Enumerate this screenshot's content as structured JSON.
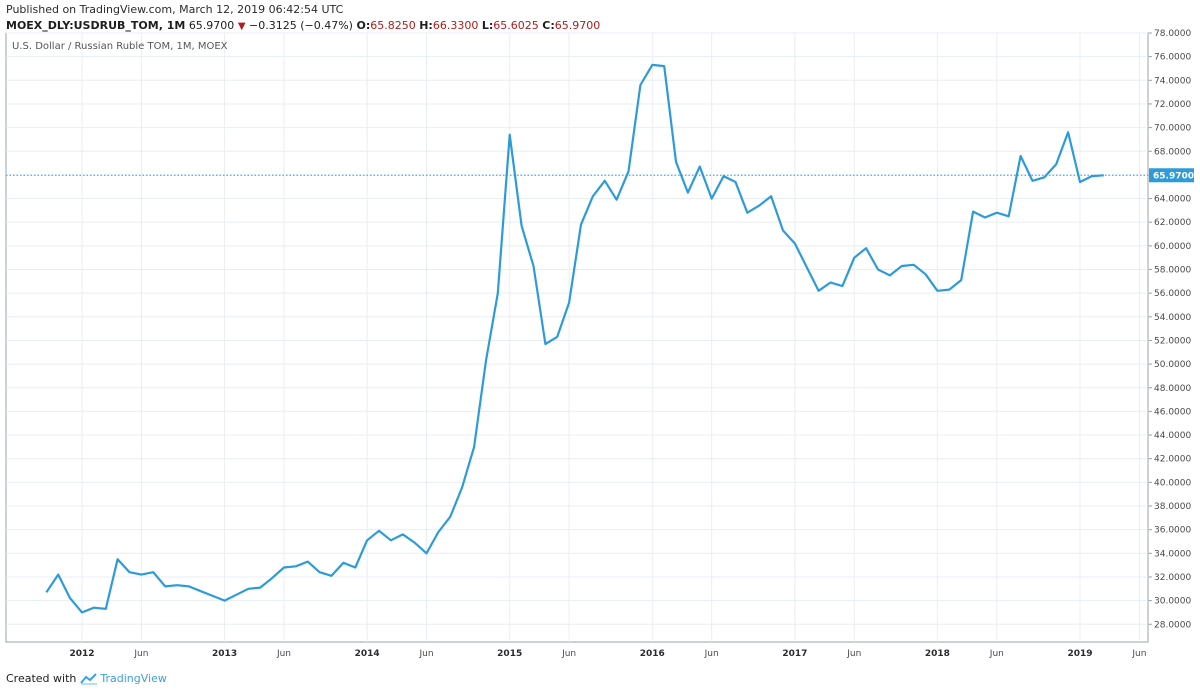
{
  "header": {
    "published": "Published on TradingView.com, March 12, 2019 06:42:54 UTC",
    "symbol": "MOEX_DLY:USDRUB_TOM, 1M",
    "last": "65.9700",
    "change": "−0.3125 (−0.47%)",
    "open_label": "O:",
    "open": "65.8250",
    "high_label": "H:",
    "high": "66.3300",
    "low_label": "L:",
    "low": "65.6025",
    "close_label": "C:",
    "close": "65.9700"
  },
  "footer": {
    "created_with": "Created with",
    "brand": "TradingView"
  },
  "colors": {
    "line": "#2e9bd9",
    "down": "#b01c1c",
    "grid": "#e8eef3",
    "price_label_bg": "#2e9bd9"
  },
  "chart_data": {
    "type": "line",
    "title": "U.S. Dollar / Russian Ruble TOM, 1M, MOEX",
    "ylim": [
      26.5,
      78
    ],
    "y_ticks": [
      28,
      30,
      32,
      34,
      36,
      38,
      40,
      42,
      44,
      46,
      48,
      50,
      52,
      54,
      56,
      58,
      60,
      62,
      64,
      66,
      68,
      70,
      72,
      74,
      76,
      78
    ],
    "y_tick_labels": [
      "28.0000",
      "30.0000",
      "32.0000",
      "34.0000",
      "36.0000",
      "38.0000",
      "40.0000",
      "42.0000",
      "44.0000",
      "46.0000",
      "48.0000",
      "50.0000",
      "52.0000",
      "54.0000",
      "56.0000",
      "58.0000",
      "60.0000",
      "62.0000",
      "64.0000",
      "66.0000",
      "68.0000",
      "70.0000",
      "72.0000",
      "74.0000",
      "76.0000",
      "78.0000"
    ],
    "x_ticks": [
      {
        "label": "2012",
        "date": "2012-01",
        "year": true
      },
      {
        "label": "Jun",
        "date": "2012-06",
        "year": false
      },
      {
        "label": "2013",
        "date": "2013-01",
        "year": true
      },
      {
        "label": "Jun",
        "date": "2013-06",
        "year": false
      },
      {
        "label": "2014",
        "date": "2014-01",
        "year": true
      },
      {
        "label": "Jun",
        "date": "2014-06",
        "year": false
      },
      {
        "label": "2015",
        "date": "2015-01",
        "year": true
      },
      {
        "label": "Jun",
        "date": "2015-06",
        "year": false
      },
      {
        "label": "2016",
        "date": "2016-01",
        "year": true
      },
      {
        "label": "Jun",
        "date": "2016-06",
        "year": false
      },
      {
        "label": "2017",
        "date": "2017-01",
        "year": true
      },
      {
        "label": "Jun",
        "date": "2017-06",
        "year": false
      },
      {
        "label": "2018",
        "date": "2018-01",
        "year": true
      },
      {
        "label": "Jun",
        "date": "2018-06",
        "year": false
      },
      {
        "label": "2019",
        "date": "2019-01",
        "year": true
      },
      {
        "label": "Jun",
        "date": "2019-06",
        "year": false
      }
    ],
    "current_value": 65.97,
    "current_label": "65.9700",
    "series": [
      {
        "x": [
          "2011-10",
          "2011-11",
          "2011-12",
          "2012-01",
          "2012-02",
          "2012-03",
          "2012-04",
          "2012-05",
          "2012-06",
          "2012-07",
          "2012-08",
          "2012-09",
          "2012-10",
          "2012-11",
          "2012-12",
          "2013-01",
          "2013-02",
          "2013-03",
          "2013-04",
          "2013-05",
          "2013-06",
          "2013-07",
          "2013-08",
          "2013-09",
          "2013-10",
          "2013-11",
          "2013-12",
          "2014-01",
          "2014-02",
          "2014-03",
          "2014-04",
          "2014-05",
          "2014-06",
          "2014-07",
          "2014-08",
          "2014-09",
          "2014-10",
          "2014-11",
          "2014-12",
          "2015-01",
          "2015-02",
          "2015-03",
          "2015-04",
          "2015-05",
          "2015-06",
          "2015-07",
          "2015-08",
          "2015-09",
          "2015-10",
          "2015-11",
          "2015-12",
          "2016-01",
          "2016-02",
          "2016-03",
          "2016-04",
          "2016-05",
          "2016-06",
          "2016-07",
          "2016-08",
          "2016-09",
          "2016-10",
          "2016-11",
          "2016-12",
          "2017-01",
          "2017-02",
          "2017-03",
          "2017-04",
          "2017-05",
          "2017-06",
          "2017-07",
          "2017-08",
          "2017-09",
          "2017-10",
          "2017-11",
          "2017-12",
          "2018-01",
          "2018-02",
          "2018-03",
          "2018-04",
          "2018-05",
          "2018-06",
          "2018-07",
          "2018-08",
          "2018-09",
          "2018-10",
          "2018-11",
          "2018-12",
          "2019-01",
          "2019-02",
          "2019-03"
        ],
        "values": [
          30.7,
          32.2,
          30.2,
          29.0,
          29.4,
          29.3,
          33.5,
          32.4,
          32.2,
          32.4,
          31.2,
          31.3,
          31.2,
          30.8,
          30.4,
          30.0,
          30.5,
          31.0,
          31.1,
          31.9,
          32.8,
          32.9,
          33.3,
          32.4,
          32.1,
          33.2,
          32.8,
          35.1,
          35.9,
          35.1,
          35.6,
          34.9,
          34.0,
          35.8,
          37.1,
          39.6,
          43.0,
          50.3,
          56.0,
          69.4,
          61.7,
          58.3,
          51.7,
          52.3,
          55.2,
          61.8,
          64.2,
          65.5,
          63.9,
          66.3,
          73.6,
          75.3,
          75.2,
          67.1,
          64.5,
          66.7,
          64.0,
          65.9,
          65.4,
          62.8,
          63.4,
          64.2,
          61.3,
          60.2,
          58.2,
          56.2,
          56.9,
          56.6,
          59.0,
          59.8,
          58.0,
          57.5,
          58.3,
          58.4,
          57.6,
          56.2,
          56.3,
          57.1,
          62.9,
          62.4,
          62.8,
          62.5,
          67.6,
          65.5,
          65.8,
          66.9,
          69.6,
          65.4,
          65.9,
          65.97
        ]
      }
    ],
    "grid": true,
    "y_axis_side": "right"
  }
}
